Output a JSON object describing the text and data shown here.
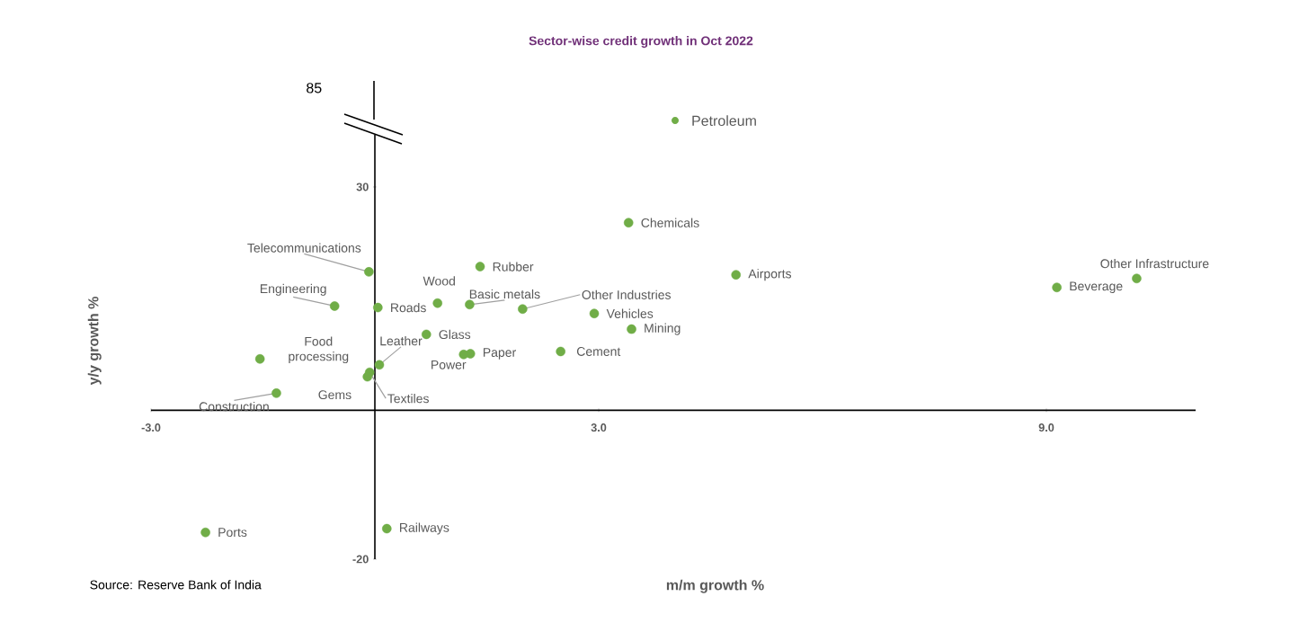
{
  "chart_data": [
    {
      "type": "other",
      "title": "Sector-wise credit growth in Oct 2022",
      "color": "#70ad47",
      "annotations": [
        "85",
        "Petroleum"
      ]
    },
    {
      "type": "scatter",
      "xlabel": "m/m growth %",
      "ylabel": "y/y growth %",
      "color": "#70ad47",
      "marker": "circle",
      "xlim": [
        -3,
        11
      ],
      "ylim": [
        -20,
        37
      ],
      "xticks": [
        {
          "value": -3,
          "label": "-3.0"
        },
        {
          "value": 3,
          "label": "3.0"
        },
        {
          "value": 9,
          "label": "9.0"
        }
      ],
      "yticks": [
        -20,
        30
      ],
      "x": [
        3.4,
        4.84,
        10.21,
        9.14,
        1.98,
        2.94,
        3.44,
        2.49,
        1.28,
        1.19,
        0.69,
        1.27,
        1.41,
        0.84,
        0.04,
        -0.54,
        -0.08,
        -1.54,
        0.06,
        -0.07,
        -0.1,
        -1.32,
        -2.27,
        0.16
      ],
      "values": [
        25.2,
        18.2,
        17.7,
        16.5,
        13.6,
        13.0,
        10.9,
        7.9,
        7.6,
        7.5,
        10.2,
        14.2,
        19.3,
        14.4,
        13.8,
        14.0,
        18.6,
        6.9,
        6.1,
        5.1,
        4.5,
        2.3,
        -16.4,
        -15.9
      ],
      "annotations": [
        {
          "text": "Chemicals",
          "x": 3.4,
          "y": 25.2
        },
        {
          "text": "Airports",
          "x": 4.84,
          "y": 18.2
        },
        {
          "text": "Other Infrastructure",
          "x": 10.21,
          "y": 17.7
        },
        {
          "text": "Beverage",
          "x": 9.14,
          "y": 16.5
        },
        {
          "text": "Other Industries",
          "x": 1.98,
          "y": 13.6
        },
        {
          "text": "Vehicles",
          "x": 2.94,
          "y": 13.0
        },
        {
          "text": "Mining",
          "x": 3.44,
          "y": 10.9
        },
        {
          "text": "Cement",
          "x": 2.49,
          "y": 7.9
        },
        {
          "text": "Paper",
          "x": 1.28,
          "y": 7.6
        },
        {
          "text": "Power",
          "x": 1.19,
          "y": 7.5
        },
        {
          "text": "Glass",
          "x": 0.69,
          "y": 10.2
        },
        {
          "text": "Basic metals",
          "x": 1.27,
          "y": 14.2
        },
        {
          "text": "Rubber",
          "x": 1.41,
          "y": 19.3
        },
        {
          "text": "Wood",
          "x": 0.84,
          "y": 14.4
        },
        {
          "text": "Roads",
          "x": 0.04,
          "y": 13.8
        },
        {
          "text": "Engineering",
          "x": -0.54,
          "y": 14.0
        },
        {
          "text": "Telecommunications",
          "x": -0.08,
          "y": 18.6
        },
        {
          "text": "Food processing",
          "x": -1.54,
          "y": 6.9
        },
        {
          "text": "Leather",
          "x": 0.06,
          "y": 6.1
        },
        {
          "text": "Textiles",
          "x": -0.07,
          "y": 5.1
        },
        {
          "text": "Gems",
          "x": -0.1,
          "y": 4.5
        },
        {
          "text": "Construction",
          "x": -1.32,
          "y": 2.3
        },
        {
          "text": "Ports",
          "x": -2.27,
          "y": -16.4
        },
        {
          "text": "Railways",
          "x": 0.16,
          "y": -15.9
        },
        "Source: Reserve Bank of India"
      ]
    }
  ]
}
